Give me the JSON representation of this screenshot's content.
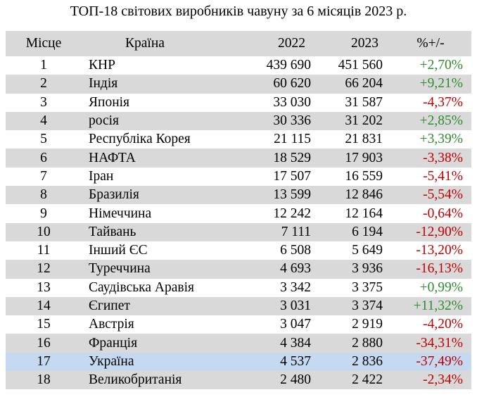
{
  "title": "ТОП-18 світових виробників чавуну за 6 місяців 2023 р.",
  "headers": {
    "place": "Місце",
    "country": "Країна",
    "y2022": "2022",
    "y2023": "2023",
    "change": "%+/-"
  },
  "colors": {
    "positive": "#2e8b2e",
    "negative": "#c00000",
    "stripe": "#d9d9d9",
    "highlight": "#c5d9f1"
  },
  "rows": [
    {
      "place": "1",
      "country": "КНР",
      "y2022": "439 690",
      "y2023": "451 560",
      "change": "+2,70%"
    },
    {
      "place": "2",
      "country": "Індія",
      "y2022": "60 620",
      "y2023": "66 204",
      "change": "+9,21%"
    },
    {
      "place": "3",
      "country": "Японія",
      "y2022": "33 030",
      "y2023": "31 587",
      "change": "-4,37%"
    },
    {
      "place": "4",
      "country": "росія",
      "y2022": "30 336",
      "y2023": "31 202",
      "change": "+2,85%"
    },
    {
      "place": "5",
      "country": "Республіка Корея",
      "y2022": "21 115",
      "y2023": "21 831",
      "change": "+3,39%"
    },
    {
      "place": "6",
      "country": "НАФТА",
      "y2022": "18 529",
      "y2023": "17 903",
      "change": "-3,38%"
    },
    {
      "place": "7",
      "country": "Іран",
      "y2022": "17 507",
      "y2023": "16 559",
      "change": "-5,41%"
    },
    {
      "place": "8",
      "country": "Бразилія",
      "y2022": "13 599",
      "y2023": "12 846",
      "change": "-5,54%"
    },
    {
      "place": "9",
      "country": "Німеччина",
      "y2022": "12 242",
      "y2023": "12 164",
      "change": "-0,64%"
    },
    {
      "place": "10",
      "country": "Тайвань",
      "y2022": "7 111",
      "y2023": "6 194",
      "change": "-12,90%"
    },
    {
      "place": "11",
      "country": "Інший ЄС",
      "y2022": "6 508",
      "y2023": "5 649",
      "change": "-13,20%"
    },
    {
      "place": "12",
      "country": "Туреччина",
      "y2022": "4 693",
      "y2023": "3 936",
      "change": "-16,13%"
    },
    {
      "place": "13",
      "country": "Саудівська Аравія",
      "y2022": "3 342",
      "y2023": "3 375",
      "change": "+0,99%"
    },
    {
      "place": "14",
      "country": "Єгипет",
      "y2022": "3 031",
      "y2023": "3 374",
      "change": "+11,32%"
    },
    {
      "place": "15",
      "country": "Австрія",
      "y2022": "3 047",
      "y2023": "2 919",
      "change": "-4,20%"
    },
    {
      "place": "16",
      "country": "Франція",
      "y2022": "4 384",
      "y2023": "2 880",
      "change": "-34,31%"
    },
    {
      "place": "17",
      "country": "Україна",
      "y2022": "4 537",
      "y2023": "2 836",
      "change": "-37,49%"
    },
    {
      "place": "18",
      "country": "Великобританія",
      "y2022": "2 480",
      "y2023": "2 422",
      "change": "-2,34%"
    }
  ]
}
